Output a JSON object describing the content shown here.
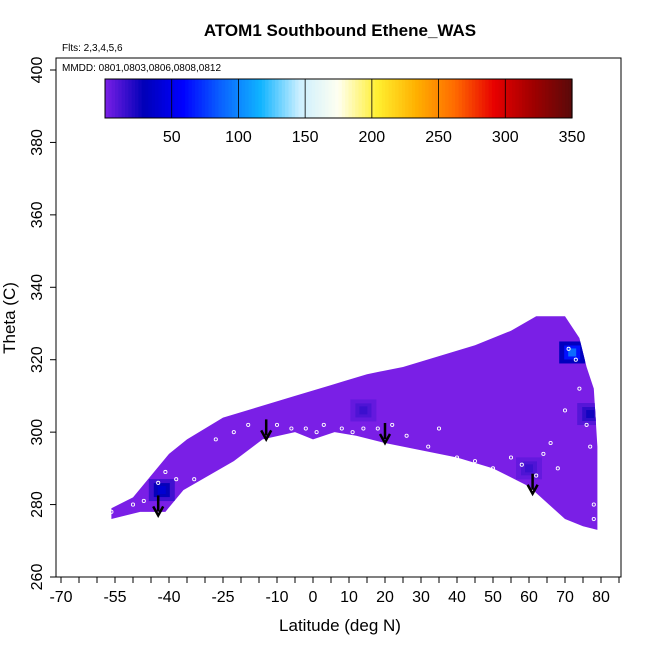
{
  "chart_data": {
    "type": "heatmap",
    "title": "ATOM1 Southbound Ethene_WAS",
    "flights_note": "Flts: 2,3,4,5,6",
    "dates_note": "MMDD: 0801,0803,0806,0808,0812",
    "xlabel": "Latitude (deg N)",
    "ylabel": "Theta (C)",
    "xlim": [
      -72,
      86
    ],
    "ylim": [
      260,
      405
    ],
    "x_ticks": [
      -70,
      -55,
      -40,
      -25,
      -10,
      0,
      10,
      20,
      30,
      40,
      50,
      60,
      70,
      80
    ],
    "y_ticks": [
      260,
      280,
      300,
      320,
      340,
      360,
      380,
      400
    ],
    "colorbar": {
      "range": [
        0,
        350
      ],
      "ticks": [
        50,
        100,
        150,
        200,
        250,
        300,
        350
      ],
      "colors": [
        "#7a1fe6",
        "#0000b8",
        "#0000ff",
        "#0a64ff",
        "#10b4ff",
        "#ccefff",
        "#fffff0",
        "#ffef30",
        "#ffb000",
        "#ff6a00",
        "#e80000",
        "#a00000",
        "#5a0a0a"
      ]
    },
    "field_upper_boundary": [
      [
        -56,
        279
      ],
      [
        -50,
        282
      ],
      [
        -45,
        288
      ],
      [
        -40,
        294
      ],
      [
        -35,
        298
      ],
      [
        -25,
        304
      ],
      [
        -15,
        307
      ],
      [
        -5,
        310
      ],
      [
        5,
        313
      ],
      [
        15,
        316
      ],
      [
        25,
        318
      ],
      [
        35,
        321
      ],
      [
        45,
        324
      ],
      [
        55,
        328
      ],
      [
        62,
        332
      ],
      [
        70,
        332
      ],
      [
        74,
        326
      ],
      [
        76,
        318
      ],
      [
        78,
        312
      ],
      [
        79,
        296
      ],
      [
        79,
        273
      ]
    ],
    "field_lower_boundary": [
      [
        -56,
        276
      ],
      [
        -48,
        278
      ],
      [
        -41,
        278
      ],
      [
        -36,
        284
      ],
      [
        -22,
        292
      ],
      [
        -14,
        298
      ],
      [
        -5,
        300
      ],
      [
        0,
        298
      ],
      [
        6,
        300
      ],
      [
        12,
        299
      ],
      [
        20,
        297
      ],
      [
        30,
        295
      ],
      [
        40,
        293
      ],
      [
        50,
        290
      ],
      [
        60,
        285
      ],
      [
        70,
        276
      ],
      [
        75,
        274
      ],
      [
        79,
        273
      ]
    ],
    "enhanced_regions": [
      {
        "x": -42,
        "y": 284,
        "value": 40
      },
      {
        "x": 72,
        "y": 322,
        "value": 90
      },
      {
        "x": 77,
        "y": 305,
        "value": 25
      },
      {
        "x": 14,
        "y": 306,
        "value": 15
      },
      {
        "x": 60,
        "y": 290,
        "value": 15
      }
    ],
    "sample_points": [
      [
        -56,
        278
      ],
      [
        -50,
        280
      ],
      [
        -47,
        281
      ],
      [
        -43,
        286
      ],
      [
        -41,
        289
      ],
      [
        -38,
        287
      ],
      [
        -36,
        282
      ],
      [
        -33,
        287
      ],
      [
        -27,
        298
      ],
      [
        -22,
        300
      ],
      [
        -18,
        302
      ],
      [
        -10,
        302
      ],
      [
        -6,
        301
      ],
      [
        -2,
        301
      ],
      [
        1,
        300
      ],
      [
        3,
        302
      ],
      [
        8,
        301
      ],
      [
        11,
        300
      ],
      [
        14,
        301
      ],
      [
        18,
        301
      ],
      [
        22,
        302
      ],
      [
        26,
        299
      ],
      [
        32,
        296
      ],
      [
        35,
        301
      ],
      [
        40,
        293
      ],
      [
        45,
        292
      ],
      [
        50,
        290
      ],
      [
        55,
        293
      ],
      [
        58,
        291
      ],
      [
        62,
        288
      ],
      [
        64,
        294
      ],
      [
        66,
        297
      ],
      [
        68,
        290
      ],
      [
        70,
        306
      ],
      [
        71,
        323
      ],
      [
        73,
        320
      ],
      [
        74,
        312
      ],
      [
        76,
        302
      ],
      [
        77,
        296
      ],
      [
        78,
        280
      ],
      [
        78,
        276
      ]
    ],
    "arrows": [
      [
        -43,
        277
      ],
      [
        -13,
        298
      ],
      [
        20,
        297
      ],
      [
        61,
        283
      ]
    ]
  }
}
